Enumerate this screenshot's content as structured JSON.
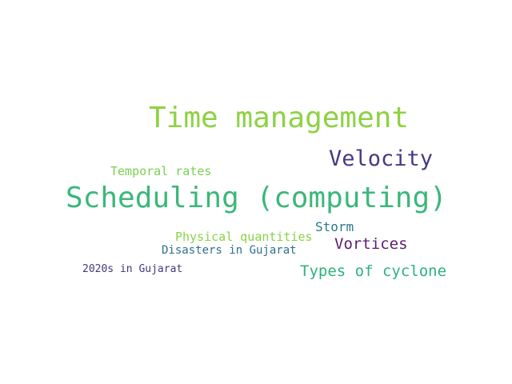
{
  "words": [
    {
      "text": "Time management",
      "color": "#8ed143"
    },
    {
      "text": "Scheduling (computing)",
      "color": "#3cb77a"
    },
    {
      "text": "Velocity",
      "color": "#443a83"
    },
    {
      "text": "Temporal rates",
      "color": "#7ad151"
    },
    {
      "text": "Storm",
      "color": "#2a788e"
    },
    {
      "text": "Physical quantities",
      "color": "#86d549"
    },
    {
      "text": "Vortices",
      "color": "#5a1e6e"
    },
    {
      "text": "Disasters in Gujarat",
      "color": "#2c718e"
    },
    {
      "text": "Types of cyclone",
      "color": "#2db27d"
    },
    {
      "text": "2020s in Gujarat",
      "color": "#45357f"
    }
  ]
}
